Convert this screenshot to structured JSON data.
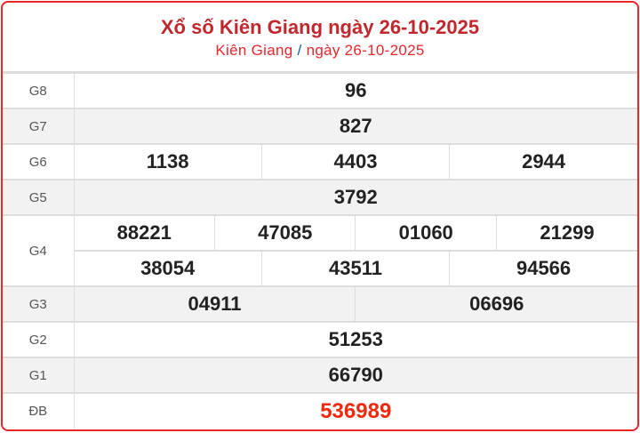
{
  "header": {
    "title": "Xổ số Kiên Giang ngày 26-10-2025",
    "province": "Kiên Giang",
    "separator": "/",
    "date": "ngày 26-10-2025"
  },
  "colors": {
    "accent": "#e8262b",
    "title": "#c0282d",
    "special": "#f0290f"
  },
  "prizes": [
    {
      "label": "G8",
      "numbers": [
        "96"
      ]
    },
    {
      "label": "G7",
      "numbers": [
        "827"
      ]
    },
    {
      "label": "G6",
      "numbers": [
        "1138",
        "4403",
        "2944"
      ]
    },
    {
      "label": "G5",
      "numbers": [
        "3792"
      ]
    },
    {
      "label": "G4",
      "numbers": [
        "88221",
        "47085",
        "01060",
        "21299",
        "38054",
        "43511",
        "94566"
      ]
    },
    {
      "label": "G3",
      "numbers": [
        "04911",
        "06696"
      ]
    },
    {
      "label": "G2",
      "numbers": [
        "51253"
      ]
    },
    {
      "label": "G1",
      "numbers": [
        "66790"
      ]
    },
    {
      "label": "ĐB",
      "numbers": [
        "536989"
      ]
    }
  ]
}
